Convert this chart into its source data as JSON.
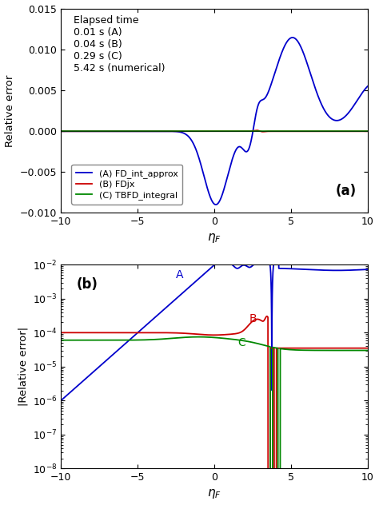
{
  "title_a": "(a)",
  "title_b": "(b)",
  "xlabel": "$\\eta_F$",
  "ylabel_a": "Relative error",
  "ylabel_b": "|Relative error|",
  "xlim": [
    -10,
    10
  ],
  "ylim_a": [
    -0.01,
    0.015
  ],
  "yticks_a": [
    -0.01,
    -0.005,
    0,
    0.005,
    0.01,
    0.015
  ],
  "xticks": [
    -10,
    -5,
    0,
    5,
    10
  ],
  "legend_labels": [
    "(A) FD_int_approx",
    "(B) FDjx",
    "(C) TBFD_integral"
  ],
  "colors": {
    "A": "#0000cc",
    "B": "#cc0000",
    "C": "#008800"
  },
  "annotation_text": "Elapsed time\n0.01 s (A)\n0.04 s (B)\n0.29 s (C)\n5.42 s (numerical)",
  "bg_color": "#ffffff",
  "linewidth": 1.3
}
